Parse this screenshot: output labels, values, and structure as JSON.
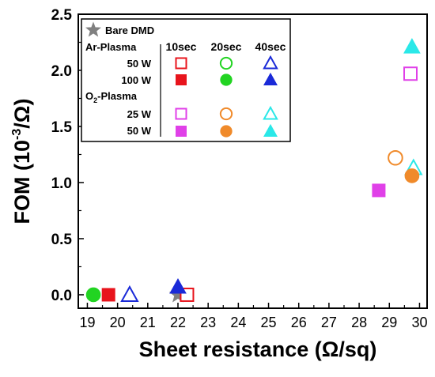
{
  "chart_data": {
    "type": "scatter",
    "xlabel": "Sheet resistance (Ω/sq)",
    "ylabel_main": "FOM (10",
    "ylabel_exp": "-3",
    "ylabel_tail": "/Ω)",
    "xlim": [
      18.7,
      30.25
    ],
    "ylim": [
      -0.12,
      2.5
    ],
    "x_ticks": [
      19,
      20,
      21,
      22,
      23,
      24,
      25,
      26,
      27,
      28,
      29,
      30
    ],
    "y_ticks": [
      0.0,
      0.5,
      1.0,
      1.5,
      2.0,
      2.5
    ],
    "y_tick_labels": [
      "0.0",
      "0.5",
      "1.0",
      "1.5",
      "2.0",
      "2.5"
    ],
    "legend": {
      "bare_label": "Bare DMD",
      "time_headers": [
        "10sec",
        "20sec",
        "40sec"
      ],
      "group1_label": "Ar-Plasma",
      "group2_label_main": "O",
      "group2_label_sub": "2",
      "group2_label_tail": "-Plasma",
      "rows": [
        {
          "label": "50 W",
          "group": "Ar"
        },
        {
          "label": "100 W",
          "group": "Ar"
        },
        {
          "label": "25 W",
          "group": "O2"
        },
        {
          "label": "50 W",
          "group": "O2"
        }
      ]
    },
    "series": [
      {
        "name": "Bare DMD",
        "marker": "star",
        "filled": true,
        "color": "#808080",
        "points": [
          [
            22.0,
            0.0
          ]
        ]
      },
      {
        "group": "Ar",
        "power": "50 W",
        "time": "10sec",
        "marker": "square",
        "filled": false,
        "color": "#e8141c",
        "points": [
          [
            22.3,
            0.0
          ]
        ]
      },
      {
        "group": "Ar",
        "power": "50 W",
        "time": "20sec",
        "marker": "circle",
        "filled": false,
        "color": "#22d422",
        "points": []
      },
      {
        "group": "Ar",
        "power": "50 W",
        "time": "40sec",
        "marker": "triangle",
        "filled": false,
        "color": "#1a2ad8",
        "points": [
          [
            20.4,
            0.0
          ]
        ]
      },
      {
        "group": "Ar",
        "power": "100 W",
        "time": "10sec",
        "marker": "square",
        "filled": true,
        "color": "#e8141c",
        "points": [
          [
            19.7,
            0.0
          ]
        ]
      },
      {
        "group": "Ar",
        "power": "100 W",
        "time": "20sec",
        "marker": "circle",
        "filled": true,
        "color": "#22d422",
        "points": [
          [
            19.2,
            0.0
          ]
        ]
      },
      {
        "group": "Ar",
        "power": "100 W",
        "time": "40sec",
        "marker": "triangle",
        "filled": true,
        "color": "#1a2ad8",
        "points": [
          [
            22.0,
            0.07
          ]
        ]
      },
      {
        "group": "O2",
        "power": "25 W",
        "time": "10sec",
        "marker": "square",
        "filled": false,
        "color": "#e040e8",
        "points": [
          [
            29.7,
            1.97
          ]
        ]
      },
      {
        "group": "O2",
        "power": "25 W",
        "time": "20sec",
        "marker": "circle",
        "filled": false,
        "color": "#f08a2a",
        "points": [
          [
            29.2,
            1.22
          ]
        ]
      },
      {
        "group": "O2",
        "power": "25 W",
        "time": "40sec",
        "marker": "triangle",
        "filled": false,
        "color": "#2ae8e8",
        "points": [
          [
            29.8,
            1.13
          ]
        ]
      },
      {
        "group": "O2",
        "power": "50 W",
        "time": "10sec",
        "marker": "square",
        "filled": true,
        "color": "#e040e8",
        "points": [
          [
            28.65,
            0.93
          ]
        ]
      },
      {
        "group": "O2",
        "power": "50 W",
        "time": "20sec",
        "marker": "circle",
        "filled": true,
        "color": "#f08a2a",
        "points": [
          [
            29.75,
            1.06
          ]
        ]
      },
      {
        "group": "O2",
        "power": "50 W",
        "time": "40sec",
        "marker": "triangle",
        "filled": true,
        "color": "#2ae8e8",
        "points": [
          [
            29.75,
            2.21
          ]
        ]
      }
    ]
  }
}
